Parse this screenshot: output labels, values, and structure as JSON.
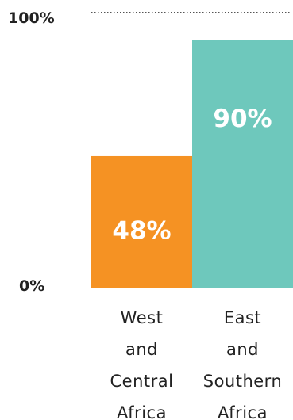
{
  "chart_data": {
    "type": "bar",
    "title": "",
    "xlabel": "",
    "ylabel": "",
    "ylim": [
      0,
      100
    ],
    "yticks": [
      {
        "value": 0,
        "label": "0%"
      },
      {
        "value": 100,
        "label": "100%"
      }
    ],
    "reference_line": {
      "value": 100,
      "style": "dotted"
    },
    "categories": [
      [
        "West",
        "and",
        "Central",
        "Africa"
      ],
      [
        "East",
        "and",
        "Southern",
        "Africa"
      ]
    ],
    "values": [
      48,
      90
    ],
    "value_labels": [
      "48%",
      "90%"
    ],
    "colors": [
      "#f59223",
      "#6ec8bc"
    ],
    "grid": false,
    "legend": "none"
  }
}
